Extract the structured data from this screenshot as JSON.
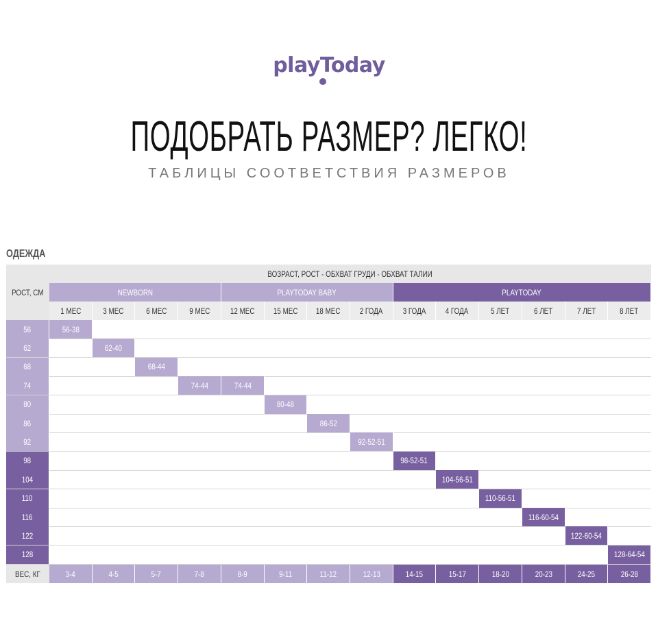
{
  "header": {
    "logo": "playToday",
    "headline": "ПОДОБРАТЬ РАЗМЕР? ЛЕГКО!",
    "subheadline": "ТАБЛИЦЫ СООТВЕТСТВИЯ РАЗМЕРОВ"
  },
  "section_title": "ОДЕЖДА",
  "table": {
    "top_header": "ВОЗРАСТ, РОСТ - ОБХВАТ ГРУДИ - ОБХВАТ ТАЛИИ",
    "height_label": "РОСТ, СМ",
    "weight_label": "ВЕС, КГ",
    "groups": [
      {
        "name": "NEWBORN",
        "span": 4
      },
      {
        "name": "PLAYTODAY BABY",
        "span": 4
      },
      {
        "name": "PLAYTODAY",
        "span": 6
      }
    ],
    "ages": [
      "1 МЕС",
      "3 МЕС",
      "6 МЕС",
      "9 МЕС",
      "12 МЕС",
      "15 МЕС",
      "18 МЕС",
      "2 ГОДА",
      "3 ГОДА",
      "4 ГОДА",
      "5 ЛЕТ",
      "6 ЛЕТ",
      "7 ЛЕТ",
      "8 ЛЕТ"
    ],
    "rows": [
      {
        "height": "56",
        "cells": [
          {
            "col": 0,
            "text": "56-38"
          }
        ]
      },
      {
        "height": "62",
        "cells": [
          {
            "col": 1,
            "text": "62-40"
          }
        ]
      },
      {
        "height": "68",
        "cells": [
          {
            "col": 2,
            "text": "68-44"
          }
        ]
      },
      {
        "height": "74",
        "cells": [
          {
            "col": 3,
            "text": "74-44"
          },
          {
            "col": 4,
            "text": "74-44"
          }
        ]
      },
      {
        "height": "80",
        "cells": [
          {
            "col": 5,
            "text": "80-48"
          }
        ]
      },
      {
        "height": "86",
        "cells": [
          {
            "col": 6,
            "text": "86-52"
          }
        ]
      },
      {
        "height": "92",
        "cells": [
          {
            "col": 7,
            "text": "92-52-51"
          }
        ]
      },
      {
        "height": "98",
        "cells": [
          {
            "col": 8,
            "text": "98-52-51"
          }
        ]
      },
      {
        "height": "104",
        "cells": [
          {
            "col": 9,
            "text": "104-56-51"
          }
        ]
      },
      {
        "height": "110",
        "cells": [
          {
            "col": 10,
            "text": "110-56-51"
          }
        ]
      },
      {
        "height": "116",
        "cells": [
          {
            "col": 11,
            "text": "116-60-54"
          }
        ]
      },
      {
        "height": "122",
        "cells": [
          {
            "col": 12,
            "text": "122-60-54"
          }
        ]
      },
      {
        "height": "128",
        "cells": [
          {
            "col": 13,
            "text": "128-64-54"
          }
        ]
      }
    ],
    "weights": [
      "3-4",
      "4-5",
      "5-7",
      "7-8",
      "8-9",
      "9-11",
      "11-12",
      "12-13",
      "14-15",
      "15-17",
      "18-20",
      "20-23",
      "24-25",
      "26-28"
    ]
  },
  "colors": {
    "brand": "#6f5d9c",
    "light_purple": "#b6aad0",
    "dark_purple": "#7860a0",
    "header_gray": "#e7e7e7"
  }
}
